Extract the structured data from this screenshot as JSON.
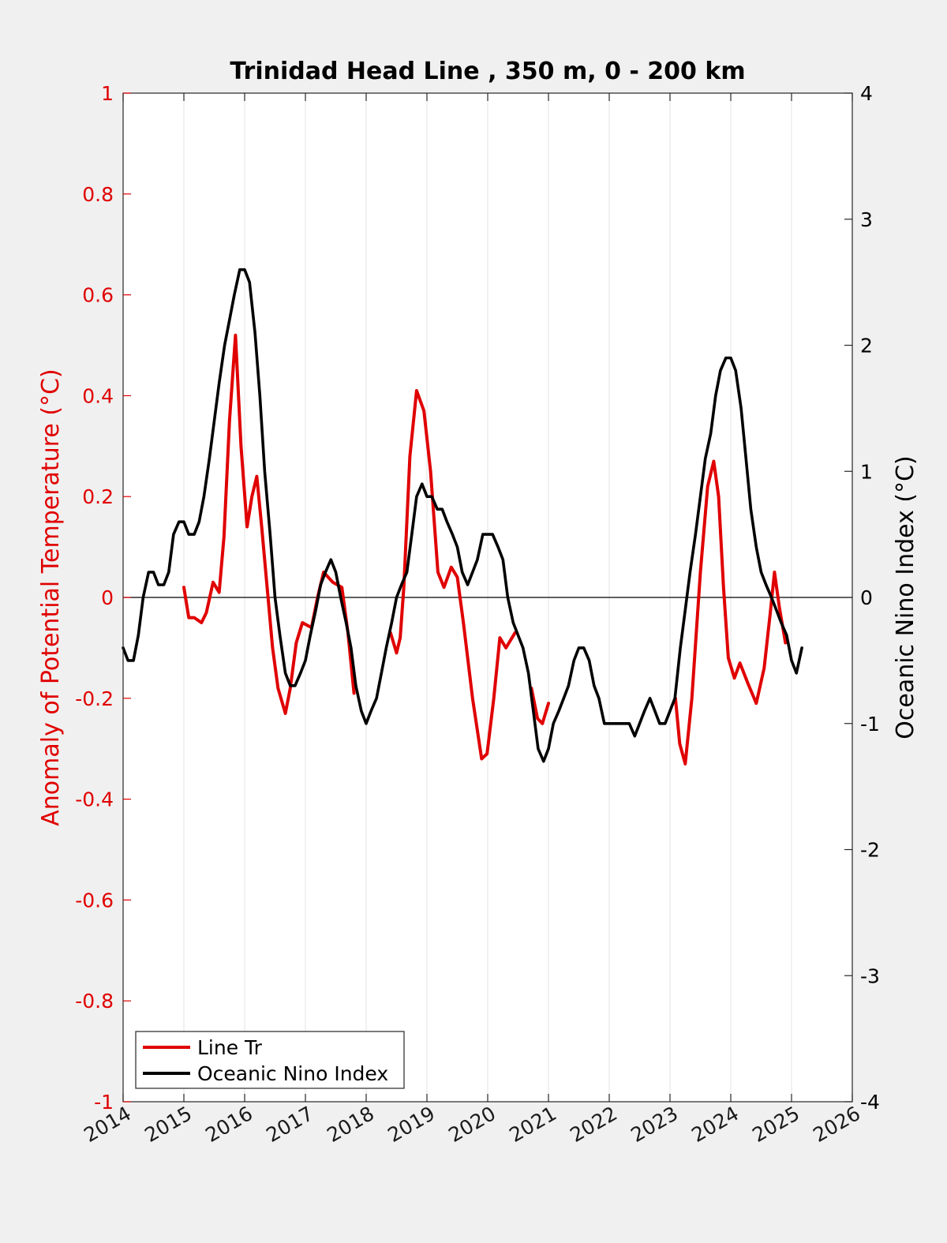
{
  "chart_data": {
    "type": "line",
    "title": "Trinidad Head Line , 350 m, 0 - 200 km",
    "xlabel": "",
    "ylabel_left": "Anomaly of Potential Temperature (°C)",
    "ylabel_right": "Oceanic Nino Index (°C)",
    "xlim": [
      2014,
      2026
    ],
    "ylim_left": [
      -1,
      1
    ],
    "ylim_right": [
      -4,
      4
    ],
    "x_ticks": [
      "2014",
      "2015",
      "2016",
      "2017",
      "2018",
      "2019",
      "2020",
      "2021",
      "2022",
      "2023",
      "2024",
      "2025",
      "2026"
    ],
    "y_ticks_left": [
      "-1",
      "-0.8",
      "-0.6",
      "-0.4",
      "-0.2",
      "0",
      "0.2",
      "0.4",
      "0.6",
      "0.8",
      "1"
    ],
    "y_ticks_right": [
      "-4",
      "-3",
      "-2",
      "-1",
      "0",
      "1",
      "2",
      "3",
      "4"
    ],
    "grid": "vertical",
    "zero_line": true,
    "legend_placement": "bottom-left",
    "colors": {
      "line_tr": "#e00000",
      "oni": "#000000",
      "left_axis": "#e00000"
    },
    "series": [
      {
        "name": "Line Tr",
        "axis": "left",
        "segments": [
          [
            [
              2015.0,
              0.02
            ],
            [
              2015.08,
              -0.04
            ],
            [
              2015.17,
              -0.04
            ],
            [
              2015.29,
              -0.05
            ],
            [
              2015.37,
              -0.03
            ],
            [
              2015.48,
              0.03
            ],
            [
              2015.58,
              0.01
            ],
            [
              2015.66,
              0.12
            ],
            [
              2015.75,
              0.35
            ],
            [
              2015.85,
              0.52
            ],
            [
              2015.94,
              0.3
            ],
            [
              2016.04,
              0.14
            ],
            [
              2016.12,
              0.2
            ],
            [
              2016.2,
              0.24
            ],
            [
              2016.28,
              0.14
            ],
            [
              2016.37,
              0.02
            ],
            [
              2016.46,
              -0.1
            ],
            [
              2016.55,
              -0.18
            ],
            [
              2016.67,
              -0.23
            ],
            [
              2016.75,
              -0.18
            ],
            [
              2016.85,
              -0.09
            ],
            [
              2016.95,
              -0.05
            ],
            [
              2017.1,
              -0.06
            ],
            [
              2017.2,
              0.0
            ],
            [
              2017.3,
              0.05
            ],
            [
              2017.45,
              0.03
            ],
            [
              2017.6,
              0.02
            ],
            [
              2017.7,
              -0.07
            ],
            [
              2017.8,
              -0.19
            ]
          ],
          [
            [
              2018.4,
              -0.07
            ],
            [
              2018.5,
              -0.11
            ],
            [
              2018.56,
              -0.08
            ],
            [
              2018.62,
              0.02
            ],
            [
              2018.72,
              0.28
            ],
            [
              2018.83,
              0.41
            ],
            [
              2018.95,
              0.37
            ],
            [
              2019.06,
              0.25
            ],
            [
              2019.18,
              0.05
            ],
            [
              2019.28,
              0.02
            ],
            [
              2019.4,
              0.06
            ],
            [
              2019.5,
              0.04
            ],
            [
              2019.6,
              -0.05
            ],
            [
              2019.75,
              -0.2
            ],
            [
              2019.9,
              -0.32
            ],
            [
              2019.99,
              -0.31
            ],
            [
              2020.1,
              -0.2
            ],
            [
              2020.2,
              -0.08
            ],
            [
              2020.3,
              -0.1
            ],
            [
              2020.45,
              -0.07
            ]
          ],
          [
            [
              2020.72,
              -0.18
            ],
            [
              2020.82,
              -0.24
            ],
            [
              2020.9,
              -0.25
            ],
            [
              2021.0,
              -0.21
            ]
          ],
          [
            [
              2023.09,
              -0.2
            ],
            [
              2023.16,
              -0.29
            ],
            [
              2023.25,
              -0.33
            ],
            [
              2023.36,
              -0.2
            ],
            [
              2023.5,
              0.05
            ],
            [
              2023.62,
              0.22
            ],
            [
              2023.72,
              0.27
            ],
            [
              2023.8,
              0.2
            ],
            [
              2023.88,
              0.02
            ],
            [
              2023.96,
              -0.12
            ],
            [
              2024.06,
              -0.16
            ],
            [
              2024.15,
              -0.13
            ],
            [
              2024.28,
              -0.17
            ],
            [
              2024.42,
              -0.21
            ],
            [
              2024.55,
              -0.14
            ],
            [
              2024.65,
              -0.03
            ],
            [
              2024.72,
              0.05
            ],
            [
              2024.8,
              -0.02
            ],
            [
              2024.9,
              -0.09
            ]
          ]
        ]
      },
      {
        "name": "Oceanic Nino Index",
        "axis": "right",
        "values": [
          [
            2014.0,
            -0.4
          ],
          [
            2014.08,
            -0.5
          ],
          [
            2014.17,
            -0.5
          ],
          [
            2014.25,
            -0.3
          ],
          [
            2014.33,
            0.0
          ],
          [
            2014.42,
            0.2
          ],
          [
            2014.5,
            0.2
          ],
          [
            2014.58,
            0.1
          ],
          [
            2014.67,
            0.1
          ],
          [
            2014.75,
            0.2
          ],
          [
            2014.83,
            0.5
          ],
          [
            2014.92,
            0.6
          ],
          [
            2015.0,
            0.6
          ],
          [
            2015.08,
            0.5
          ],
          [
            2015.17,
            0.5
          ],
          [
            2015.25,
            0.6
          ],
          [
            2015.33,
            0.8
          ],
          [
            2015.42,
            1.1
          ],
          [
            2015.5,
            1.4
          ],
          [
            2015.58,
            1.7
          ],
          [
            2015.67,
            2.0
          ],
          [
            2015.75,
            2.2
          ],
          [
            2015.83,
            2.4
          ],
          [
            2015.92,
            2.6
          ],
          [
            2016.0,
            2.6
          ],
          [
            2016.08,
            2.5
          ],
          [
            2016.17,
            2.1
          ],
          [
            2016.25,
            1.6
          ],
          [
            2016.33,
            1.0
          ],
          [
            2016.42,
            0.5
          ],
          [
            2016.5,
            0.0
          ],
          [
            2016.58,
            -0.3
          ],
          [
            2016.67,
            -0.6
          ],
          [
            2016.75,
            -0.7
          ],
          [
            2016.83,
            -0.7
          ],
          [
            2016.92,
            -0.6
          ],
          [
            2017.0,
            -0.5
          ],
          [
            2017.08,
            -0.3
          ],
          [
            2017.17,
            -0.1
          ],
          [
            2017.25,
            0.1
          ],
          [
            2017.33,
            0.2
          ],
          [
            2017.42,
            0.3
          ],
          [
            2017.5,
            0.2
          ],
          [
            2017.58,
            0.0
          ],
          [
            2017.67,
            -0.2
          ],
          [
            2017.75,
            -0.4
          ],
          [
            2017.83,
            -0.7
          ],
          [
            2017.92,
            -0.9
          ],
          [
            2018.0,
            -1.0
          ],
          [
            2018.08,
            -0.9
          ],
          [
            2018.17,
            -0.8
          ],
          [
            2018.25,
            -0.6
          ],
          [
            2018.33,
            -0.4
          ],
          [
            2018.42,
            -0.2
          ],
          [
            2018.5,
            0.0
          ],
          [
            2018.58,
            0.1
          ],
          [
            2018.67,
            0.2
          ],
          [
            2018.75,
            0.5
          ],
          [
            2018.83,
            0.8
          ],
          [
            2018.92,
            0.9
          ],
          [
            2019.0,
            0.8
          ],
          [
            2019.08,
            0.8
          ],
          [
            2019.17,
            0.7
          ],
          [
            2019.25,
            0.7
          ],
          [
            2019.33,
            0.6
          ],
          [
            2019.42,
            0.5
          ],
          [
            2019.5,
            0.4
          ],
          [
            2019.58,
            0.2
          ],
          [
            2019.67,
            0.1
          ],
          [
            2019.75,
            0.2
          ],
          [
            2019.83,
            0.3
          ],
          [
            2019.92,
            0.5
          ],
          [
            2020.0,
            0.5
          ],
          [
            2020.08,
            0.5
          ],
          [
            2020.17,
            0.4
          ],
          [
            2020.25,
            0.3
          ],
          [
            2020.33,
            0.0
          ],
          [
            2020.42,
            -0.2
          ],
          [
            2020.5,
            -0.3
          ],
          [
            2020.58,
            -0.4
          ],
          [
            2020.67,
            -0.6
          ],
          [
            2020.75,
            -0.9
          ],
          [
            2020.83,
            -1.2
          ],
          [
            2020.92,
            -1.3
          ],
          [
            2021.0,
            -1.2
          ],
          [
            2021.08,
            -1.0
          ],
          [
            2021.17,
            -0.9
          ],
          [
            2021.25,
            -0.8
          ],
          [
            2021.33,
            -0.7
          ],
          [
            2021.42,
            -0.5
          ],
          [
            2021.5,
            -0.4
          ],
          [
            2021.58,
            -0.4
          ],
          [
            2021.67,
            -0.5
          ],
          [
            2021.75,
            -0.7
          ],
          [
            2021.83,
            -0.8
          ],
          [
            2021.92,
            -1.0
          ],
          [
            2022.0,
            -1.0
          ],
          [
            2022.08,
            -1.0
          ],
          [
            2022.17,
            -1.0
          ],
          [
            2022.25,
            -1.0
          ],
          [
            2022.33,
            -1.0
          ],
          [
            2022.42,
            -1.1
          ],
          [
            2022.5,
            -1.0
          ],
          [
            2022.58,
            -0.9
          ],
          [
            2022.67,
            -0.8
          ],
          [
            2022.75,
            -0.9
          ],
          [
            2022.83,
            -1.0
          ],
          [
            2022.92,
            -1.0
          ],
          [
            2023.0,
            -0.9
          ],
          [
            2023.08,
            -0.8
          ],
          [
            2023.17,
            -0.4
          ],
          [
            2023.25,
            -0.1
          ],
          [
            2023.33,
            0.2
          ],
          [
            2023.42,
            0.5
          ],
          [
            2023.5,
            0.8
          ],
          [
            2023.58,
            1.1
          ],
          [
            2023.67,
            1.3
          ],
          [
            2023.75,
            1.6
          ],
          [
            2023.83,
            1.8
          ],
          [
            2023.92,
            1.9
          ],
          [
            2024.0,
            1.9
          ],
          [
            2024.08,
            1.8
          ],
          [
            2024.17,
            1.5
          ],
          [
            2024.25,
            1.1
          ],
          [
            2024.33,
            0.7
          ],
          [
            2024.42,
            0.4
          ],
          [
            2024.5,
            0.2
          ],
          [
            2024.58,
            0.1
          ],
          [
            2024.67,
            0.0
          ],
          [
            2024.75,
            -0.1
          ],
          [
            2024.83,
            -0.2
          ],
          [
            2024.92,
            -0.3
          ],
          [
            2025.0,
            -0.5
          ],
          [
            2025.08,
            -0.6
          ],
          [
            2025.17,
            -0.4
          ]
        ]
      }
    ]
  }
}
